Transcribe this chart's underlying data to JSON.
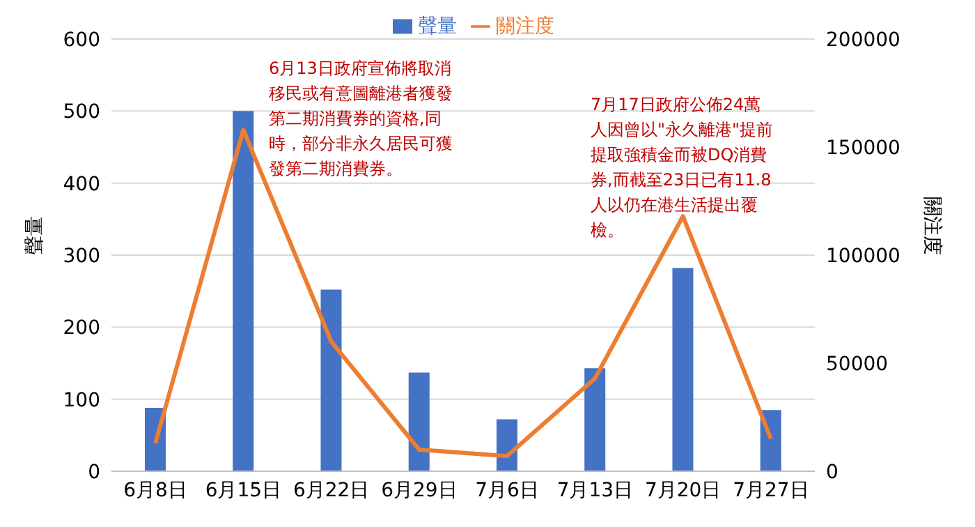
{
  "chart_data": {
    "type": "bar",
    "categories": [
      "6月8日",
      "6月15日",
      "6月22日",
      "6月29日",
      "7月6日",
      "7月13日",
      "7月20日",
      "7月27日"
    ],
    "series": [
      {
        "name": "聲量",
        "color": "#4472c4",
        "values": [
          88,
          500,
          252,
          137,
          72,
          143,
          282,
          85
        ]
      },
      {
        "name": "關注度",
        "type": "line",
        "axis": "y2",
        "color": "#ed7d31",
        "marker": "none",
        "values": [
          13000,
          158000,
          60000,
          10000,
          7000,
          43000,
          118000,
          15000
        ]
      }
    ],
    "ylabel": "聲量",
    "y2label": "關注度",
    "ylim": [
      0,
      600
    ],
    "yticks": [
      0,
      100,
      200,
      300,
      400,
      500,
      600
    ],
    "y2lim": [
      0,
      200000
    ],
    "y2ticks": [
      0,
      50000,
      100000,
      150000,
      200000
    ],
    "grid": "y",
    "legend": "top",
    "annotations": [
      "6月13日政府宣佈將取消移民或有意圖離港者獲發第二期消費券的資格,同時，部分非永久居民可獲發第二期消費券。",
      "7月17日政府公佈24萬人因曾以\"永久離港\"提前提取強積金而被DQ消費券,而截至23日已有11.8人以仍在港生活提出覆檢。"
    ]
  }
}
